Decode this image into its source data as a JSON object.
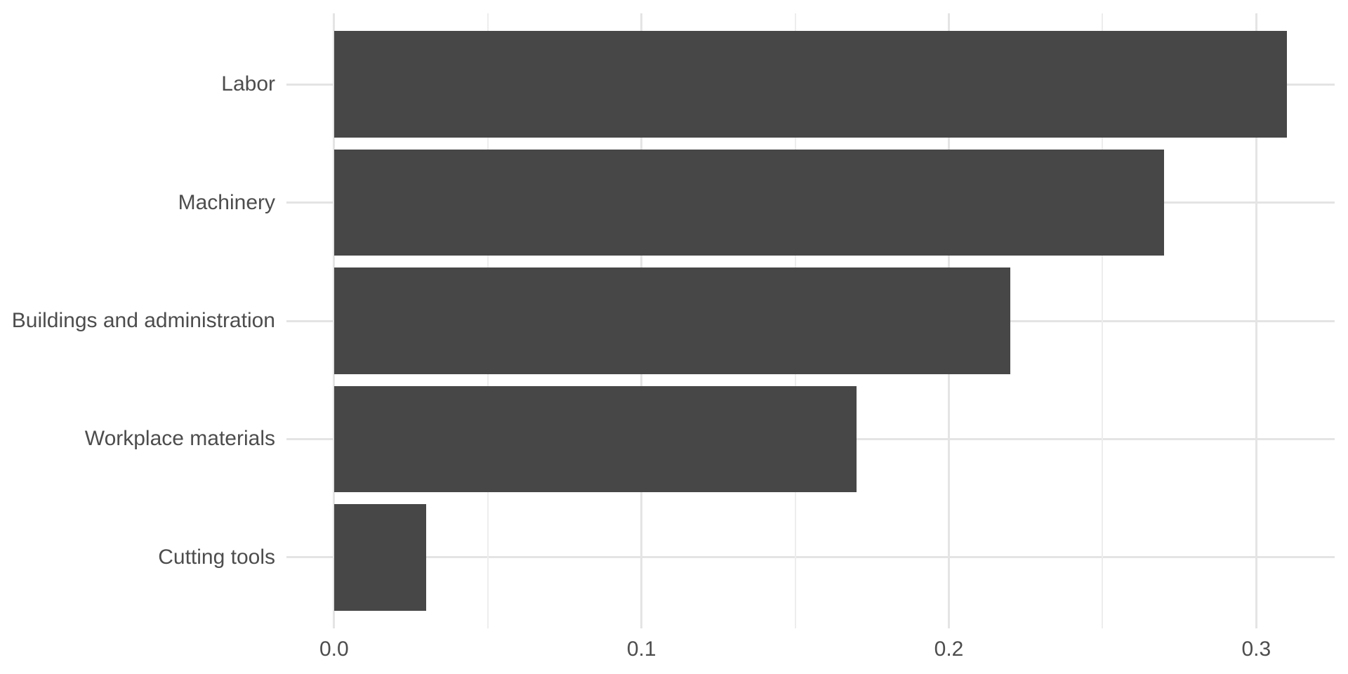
{
  "chart_data": {
    "type": "bar",
    "orientation": "horizontal",
    "title": "",
    "xlabel": "",
    "ylabel": "",
    "categories": [
      "Labor",
      "Machinery",
      "Buildings and administration",
      "Workplace materials",
      "Cutting tools"
    ],
    "values": [
      0.31,
      0.27,
      0.22,
      0.17,
      0.03
    ],
    "x_ticks_major": [
      0.0,
      0.1,
      0.2,
      0.3
    ],
    "x_tick_labels": [
      "0.0",
      "0.1",
      "0.2",
      "0.3"
    ],
    "x_ticks_minor": [
      0.05,
      0.15,
      0.25
    ],
    "xlim": [
      -0.0155,
      0.3255
    ],
    "grid": "major and minor vertical, major horizontal per category",
    "legend": false,
    "colors": {
      "bar_fill": "#474747",
      "axis_text": "#4D4D4D",
      "grid_major": "#E4E4E4",
      "grid_minor": "#EDEDED",
      "background": "#FFFFFF"
    }
  }
}
